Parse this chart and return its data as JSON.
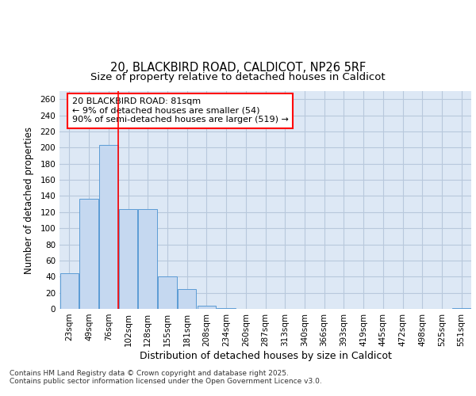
{
  "title_line1": "20, BLACKBIRD ROAD, CALDICOT, NP26 5RF",
  "title_line2": "Size of property relative to detached houses in Caldicot",
  "xlabel": "Distribution of detached houses by size in Caldicot",
  "ylabel": "Number of detached properties",
  "categories": [
    "23sqm",
    "49sqm",
    "76sqm",
    "102sqm",
    "128sqm",
    "155sqm",
    "181sqm",
    "208sqm",
    "234sqm",
    "260sqm",
    "287sqm",
    "313sqm",
    "340sqm",
    "366sqm",
    "393sqm",
    "419sqm",
    "445sqm",
    "472sqm",
    "498sqm",
    "525sqm",
    "551sqm"
  ],
  "values": [
    44,
    136,
    203,
    124,
    124,
    40,
    25,
    4,
    1,
    0,
    0,
    0,
    0,
    0,
    0,
    0,
    0,
    0,
    0,
    0,
    1
  ],
  "bar_color": "#c5d8f0",
  "bar_edge_color": "#5b9bd5",
  "grid_color": "#b8c8dc",
  "background_color": "#dde8f5",
  "red_line_x": 2.5,
  "annotation_title": "20 BLACKBIRD ROAD: 81sqm",
  "annotation_line1": "← 9% of detached houses are smaller (54)",
  "annotation_line2": "90% of semi-detached houses are larger (519) →",
  "ylim": [
    0,
    270
  ],
  "yticks": [
    0,
    20,
    40,
    60,
    80,
    100,
    120,
    140,
    160,
    180,
    200,
    220,
    240,
    260
  ],
  "footer_line1": "Contains HM Land Registry data © Crown copyright and database right 2025.",
  "footer_line2": "Contains public sector information licensed under the Open Government Licence v3.0.",
  "title_fontsize": 10.5,
  "subtitle_fontsize": 9.5,
  "ylabel_fontsize": 8.5,
  "xlabel_fontsize": 9,
  "tick_fontsize": 7.5,
  "annotation_fontsize": 8,
  "footer_fontsize": 6.5
}
